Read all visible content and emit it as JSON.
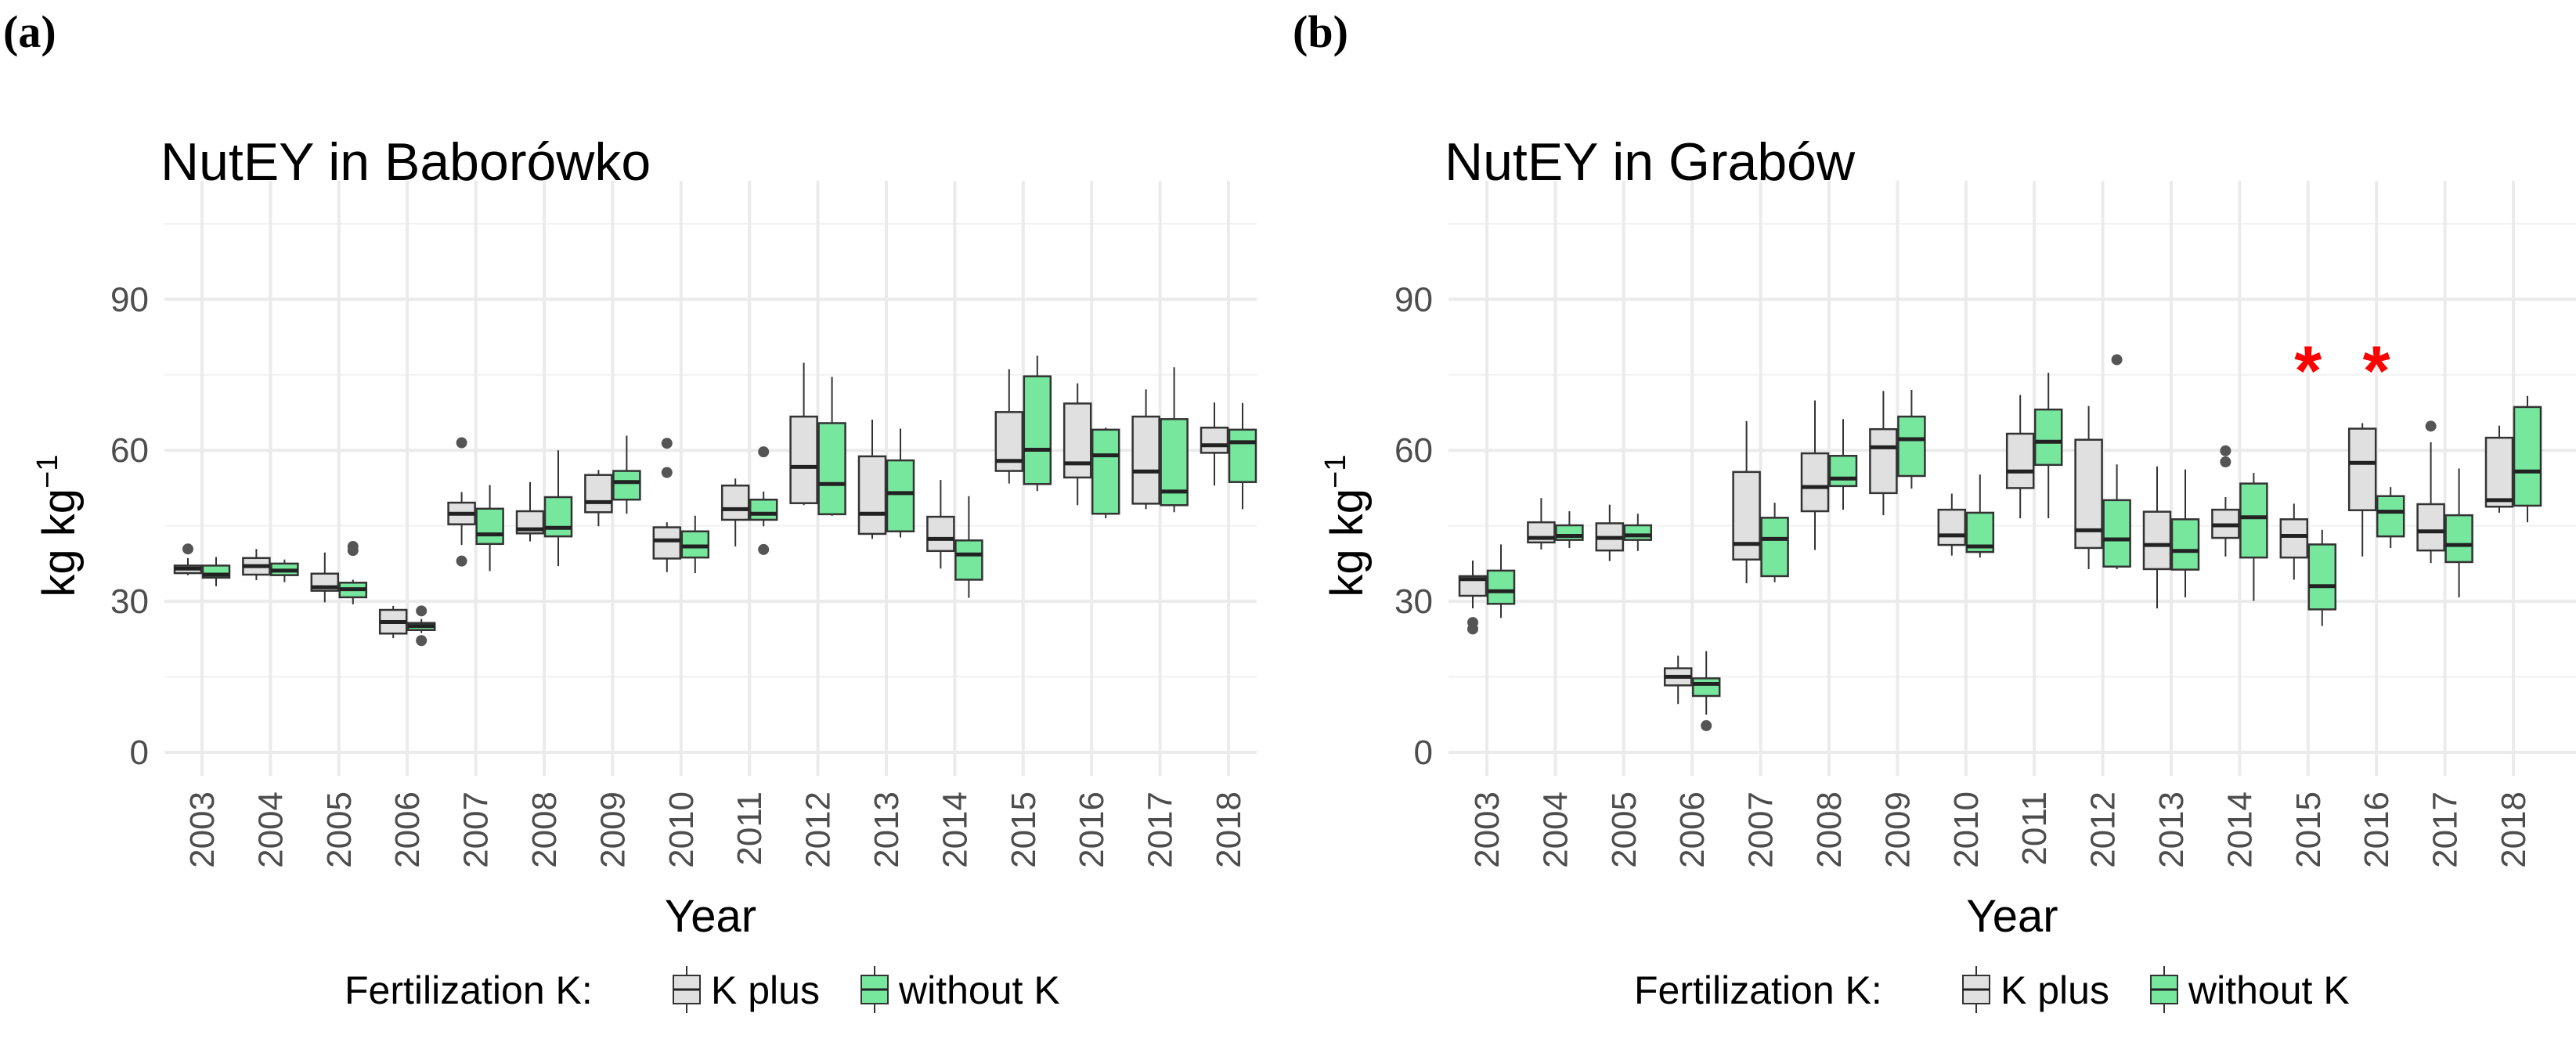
{
  "colors": {
    "k_plus": "#e0e0e0",
    "without_k": "#77e79e",
    "outline": "#333333",
    "outlier": "#555555",
    "asterisk": "#ff0000"
  },
  "legend": {
    "title": "Fertilization K:",
    "items": [
      "K plus",
      "without K"
    ]
  },
  "chart_data": [
    {
      "type": "boxplot",
      "panel_label": "(a)",
      "title": "NutEY in Baborówko",
      "xlabel": "Year",
      "ylabel": "kg kg",
      "ylabel_sup": "−1",
      "ylim": [
        0,
        113
      ],
      "yticks": [
        0,
        30,
        60,
        90
      ],
      "grid": true,
      "legend_placement": "bottom",
      "categories": [
        "2003",
        "2004",
        "2005",
        "2006",
        "2007",
        "2008",
        "2009",
        "2010",
        "2011",
        "2012",
        "2013",
        "2014",
        "2015",
        "2016",
        "2017",
        "2018"
      ],
      "series": [
        {
          "name": "K plus",
          "boxes": [
            [
              35.2,
              35.6,
              36.5,
              37.1,
              38.6,
              [
                40.4
              ]
            ],
            [
              34.2,
              35.3,
              37.0,
              38.6,
              40.4,
              []
            ],
            [
              29.8,
              32.1,
              32.8,
              35.5,
              39.7,
              []
            ],
            [
              22.7,
              23.6,
              25.9,
              28.3,
              29.1,
              []
            ],
            [
              41.2,
              45.3,
              47.4,
              49.6,
              51.7,
              [
                61.5,
                38.0
              ]
            ],
            [
              41.9,
              43.5,
              44.3,
              47.9,
              53.7,
              []
            ],
            [
              44.9,
              47.7,
              49.7,
              55.1,
              56.1,
              []
            ],
            [
              35.8,
              38.5,
              42.1,
              44.7,
              45.7,
              [
                61.4,
                55.6
              ]
            ],
            [
              40.9,
              46.2,
              48.3,
              53.0,
              54.4,
              []
            ],
            [
              49.1,
              49.5,
              56.7,
              66.7,
              77.4,
              []
            ],
            [
              42.4,
              43.4,
              47.4,
              58.8,
              66.1,
              []
            ],
            [
              36.5,
              40.0,
              42.4,
              46.8,
              54.1,
              []
            ],
            [
              53.4,
              55.9,
              57.9,
              67.6,
              76.1,
              []
            ],
            [
              49.1,
              54.6,
              57.4,
              69.3,
              73.3,
              []
            ],
            [
              48.3,
              49.4,
              55.8,
              66.7,
              72.1,
              []
            ],
            [
              53.0,
              59.5,
              61.0,
              64.5,
              69.5,
              []
            ]
          ]
        },
        {
          "name": "without K",
          "boxes": [
            [
              33.0,
              34.7,
              35.3,
              37.1,
              38.8,
              []
            ],
            [
              33.8,
              35.2,
              36.1,
              37.5,
              38.3,
              []
            ],
            [
              29.4,
              30.8,
              32.4,
              33.7,
              34.3,
              [
                40.9,
                40.1
              ]
            ],
            [
              23.7,
              24.3,
              25.1,
              25.7,
              26.5,
              [
                28.1,
                22.2
              ]
            ],
            [
              36.0,
              41.4,
              43.3,
              48.4,
              53.1,
              []
            ],
            [
              37.0,
              42.9,
              44.6,
              50.7,
              60.0,
              []
            ],
            [
              47.4,
              50.2,
              53.7,
              55.9,
              62.9,
              []
            ],
            [
              35.6,
              38.7,
              40.9,
              43.9,
              47.0,
              []
            ],
            [
              44.9,
              46.2,
              47.4,
              50.2,
              51.8,
              [
                59.7,
                40.3
              ]
            ],
            [
              47.0,
              47.3,
              53.3,
              65.4,
              74.6,
              []
            ],
            [
              42.7,
              43.9,
              51.5,
              58.0,
              64.3,
              []
            ],
            [
              30.7,
              34.3,
              39.3,
              42.1,
              50.9,
              []
            ],
            [
              51.9,
              53.3,
              60.1,
              74.7,
              78.8,
              []
            ],
            [
              46.5,
              47.4,
              59.0,
              64.1,
              64.5,
              []
            ],
            [
              47.7,
              49.1,
              51.8,
              66.2,
              76.5,
              []
            ],
            [
              48.3,
              53.7,
              61.6,
              64.1,
              69.4,
              []
            ]
          ]
        }
      ],
      "annotations": []
    },
    {
      "type": "boxplot",
      "panel_label": "(b)",
      "title": "NutEY in Grabów",
      "xlabel": "Year",
      "ylabel": "kg kg",
      "ylabel_sup": "−1",
      "ylim": [
        0,
        113
      ],
      "yticks": [
        0,
        30,
        60,
        90
      ],
      "grid": true,
      "legend_placement": "bottom",
      "categories": [
        "2003",
        "2004",
        "2005",
        "2006",
        "2007",
        "2008",
        "2009",
        "2010",
        "2011",
        "2012",
        "2013",
        "2014",
        "2015",
        "2016",
        "2017",
        "2018"
      ],
      "series": [
        {
          "name": "K plus",
          "boxes": [
            [
              28.6,
              31.1,
              34.4,
              35.0,
              38.1,
              [
                25.8,
                24.5
              ]
            ],
            [
              40.3,
              41.7,
              42.6,
              45.7,
              50.5,
              []
            ],
            [
              38.0,
              40.1,
              42.6,
              45.5,
              49.2,
              []
            ],
            [
              9.6,
              13.3,
              15.0,
              16.7,
              19.2,
              []
            ],
            [
              33.6,
              38.3,
              41.4,
              55.7,
              65.8,
              []
            ],
            [
              40.2,
              47.9,
              52.7,
              59.4,
              69.9,
              []
            ],
            [
              47.1,
              51.5,
              60.6,
              64.2,
              71.8,
              []
            ],
            [
              39.1,
              41.2,
              43.1,
              48.2,
              51.4,
              []
            ],
            [
              46.5,
              52.5,
              55.8,
              63.3,
              71.0,
              []
            ],
            [
              36.4,
              40.6,
              44.1,
              62.1,
              68.8,
              []
            ],
            [
              28.6,
              36.4,
              41.2,
              47.8,
              56.8,
              []
            ],
            [
              38.9,
              42.6,
              45.1,
              48.2,
              50.7,
              [
                59.9,
                57.7
              ]
            ],
            [
              34.3,
              38.7,
              43.0,
              46.3,
              49.4,
              []
            ],
            [
              38.9,
              48.1,
              57.5,
              64.3,
              65.4,
              []
            ],
            [
              37.6,
              40.1,
              43.9,
              49.3,
              61.6,
              [
                64.8
              ]
            ],
            [
              47.6,
              48.8,
              50.1,
              62.5,
              64.9,
              []
            ]
          ]
        },
        {
          "name": "without K",
          "boxes": [
            [
              26.7,
              29.5,
              32.0,
              36.1,
              41.3,
              []
            ],
            [
              40.6,
              42.2,
              43.0,
              45.1,
              47.9,
              []
            ],
            [
              40.0,
              42.2,
              43.1,
              45.1,
              47.4,
              []
            ],
            [
              7.5,
              11.2,
              13.6,
              14.7,
              20.1,
              [
                5.3
              ]
            ],
            [
              33.8,
              35.0,
              42.4,
              46.6,
              49.6,
              []
            ],
            [
              48.2,
              52.9,
              54.4,
              58.9,
              66.2,
              []
            ],
            [
              52.4,
              54.9,
              62.2,
              66.7,
              72.0,
              []
            ],
            [
              38.7,
              39.8,
              40.9,
              47.6,
              55.2,
              []
            ],
            [
              46.5,
              57.1,
              61.7,
              68.1,
              75.4,
              []
            ],
            [
              36.4,
              36.9,
              42.3,
              50.1,
              57.2,
              [
                78.0
              ]
            ],
            [
              30.8,
              36.3,
              40.0,
              46.3,
              56.2,
              []
            ],
            [
              30.1,
              38.7,
              46.7,
              53.4,
              55.5,
              []
            ],
            [
              25.1,
              28.4,
              33.0,
              41.3,
              44.2,
              []
            ],
            [
              40.6,
              42.9,
              47.8,
              50.9,
              52.7,
              []
            ],
            [
              30.8,
              37.8,
              41.2,
              47.1,
              56.4,
              []
            ],
            [
              45.7,
              49.0,
              55.8,
              68.6,
              70.8,
              []
            ]
          ]
        }
      ],
      "annotations": [
        {
          "category": "2015",
          "text": "*",
          "y": 78
        },
        {
          "category": "2016",
          "text": "*",
          "y": 78
        }
      ]
    }
  ]
}
